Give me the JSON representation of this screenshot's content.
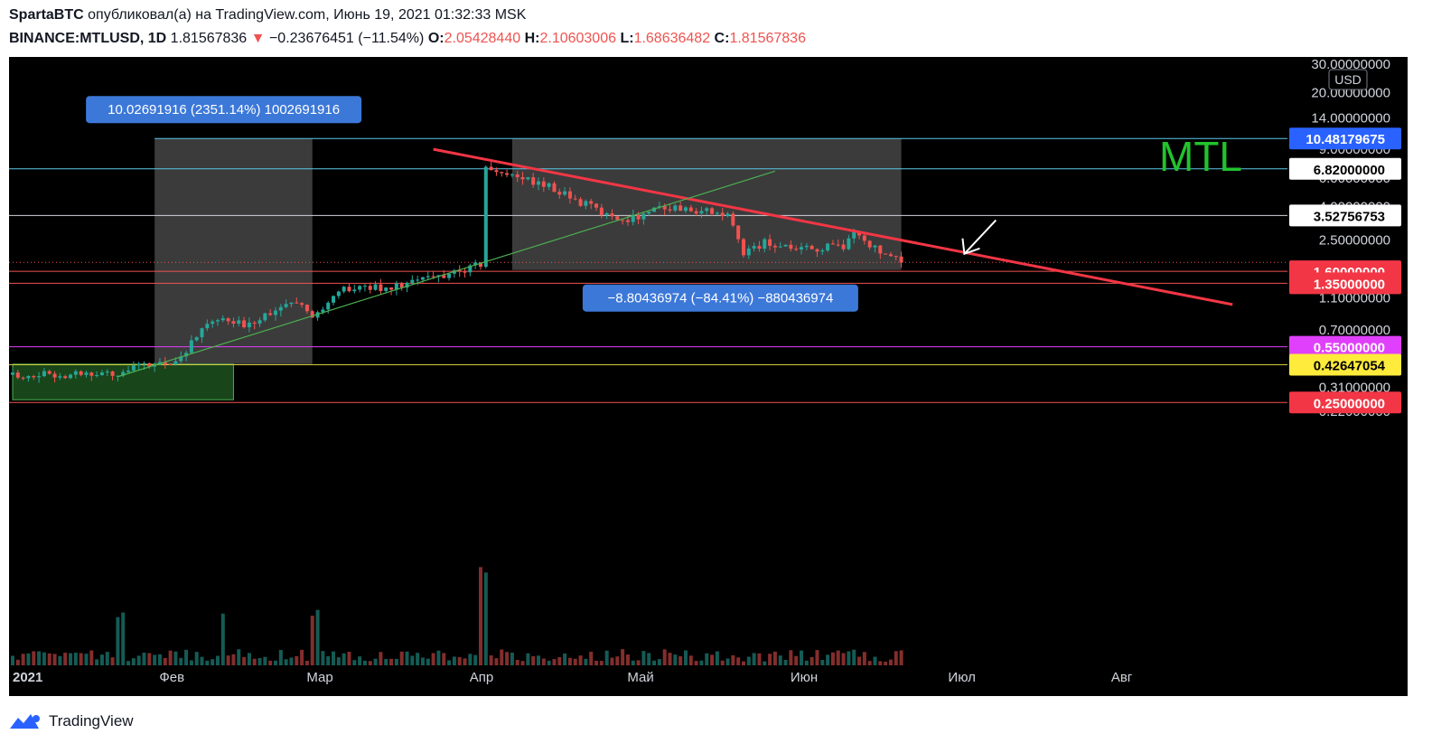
{
  "header": {
    "author": "SpartaBTC",
    "published_text": "опубликовал(а) на TradingView.com, Июнь 19, 2021 01:32:33 MSK",
    "symbol": "BINANCE:MTLUSD, 1D",
    "last": "1.81567836",
    "change_arrow": "▼",
    "change": "−0.23676451 (−11.54%)",
    "o_label": "O:",
    "o_value": "2.05428440",
    "h_label": "H:",
    "h_value": "2.10603006",
    "l_label": "L:",
    "l_value": "1.68636482",
    "c_label": "C:",
    "c_value": "1.81567836"
  },
  "footer": {
    "brand": "TradingView"
  },
  "colors": {
    "up": "#26a69a",
    "down": "#ef5350",
    "trend": "#f23645",
    "support": "#4caf50",
    "cyan": "#5bc8e8",
    "magenta": "#e040fb",
    "yellow": "#d4c83a",
    "mtl": "#22c32e"
  },
  "chart_data": {
    "type": "candlestick",
    "title": "MTL",
    "currency": "USD",
    "scale": "log",
    "ylim": [
      0.2,
      30
    ],
    "x_start": "2021-01-01",
    "x_end": "2021-08-31",
    "x_ticks": [
      {
        "date": "2021-01-01",
        "label": "2021"
      },
      {
        "date": "2021-02-01",
        "label": "Фев"
      },
      {
        "date": "2021-03-01",
        "label": "Мар"
      },
      {
        "date": "2021-04-01",
        "label": "Апр"
      },
      {
        "date": "2021-05-01",
        "label": "Май"
      },
      {
        "date": "2021-06-01",
        "label": "Июн"
      },
      {
        "date": "2021-07-01",
        "label": "Июл"
      },
      {
        "date": "2021-08-01",
        "label": "Авг"
      }
    ],
    "y_ticks": [
      {
        "value": 30,
        "label": "30.00000000"
      },
      {
        "value": 20,
        "label": "20.00000000"
      },
      {
        "value": 14,
        "label": "14.00000000"
      },
      {
        "value": 9,
        "label": "9.00000000"
      },
      {
        "value": 6,
        "label": "6.00000000"
      },
      {
        "value": 4,
        "label": "4.00000000"
      },
      {
        "value": 2.5,
        "label": "2.50000000"
      },
      {
        "value": 1.6,
        "label": "1.60000000"
      },
      {
        "value": 1.1,
        "label": "1.10000000"
      },
      {
        "value": 0.7,
        "label": "0.70000000"
      },
      {
        "value": 0.31,
        "label": "0.31000000"
      },
      {
        "value": 0.22,
        "label": "0.22000000"
      }
    ],
    "levels": [
      {
        "value": 10.48179675,
        "label": "10.48179675",
        "line": "cyan",
        "badge_bg": "#2962ff",
        "badge_fg": "#ffffff"
      },
      {
        "value": 6.82,
        "label": "6.82000000",
        "line": "cyan",
        "badge_bg": "#ffffff",
        "badge_fg": "#000000"
      },
      {
        "value": 3.52756753,
        "label": "3.52756753",
        "line": "white",
        "badge_bg": "#ffffff",
        "badge_fg": "#000000"
      },
      {
        "value": 1.6,
        "label": "1.60000000",
        "line": "red",
        "badge_bg": "#f23645",
        "badge_fg": "#ffffff"
      },
      {
        "value": 1.35,
        "label": "1.35000000",
        "line": "red",
        "badge_bg": "#f23645",
        "badge_fg": "#ffffff"
      },
      {
        "value": 0.55,
        "label": "0.55000000",
        "line": "magenta",
        "badge_bg": "#e040fb",
        "badge_fg": "#ffffff"
      },
      {
        "value": 0.42647054,
        "label": "0.42647054",
        "line": "yellow",
        "badge_bg": "#ffeb3b",
        "badge_fg": "#000000"
      },
      {
        "value": 0.25,
        "label": "0.25000000",
        "line": "red",
        "badge_bg": "#f23645",
        "badge_fg": "#ffffff"
      }
    ],
    "current_price": 1.81567836,
    "measures": [
      {
        "label": "10.02691916 (2351.14%) 1002691916",
        "from": "2021-01-28",
        "to": "2021-02-27",
        "high": 10.48,
        "low": 0.43
      },
      {
        "label": "−8.80436974 (−84.41%) −880436974",
        "from": "2021-04-06",
        "to": "2021-06-19",
        "high": 10.48,
        "low": 1.63
      }
    ],
    "trend_lines": [
      {
        "name": "resistance",
        "from": {
          "date": "2021-03-22",
          "value": 9.0
        },
        "to": {
          "date": "2021-08-21",
          "value": 1.0
        }
      },
      {
        "name": "support",
        "from": {
          "date": "2021-01-21",
          "value": 0.36
        },
        "to": {
          "date": "2021-05-26",
          "value": 6.6
        }
      }
    ],
    "arrow": {
      "from": {
        "date": "2021-07-07",
        "value": 3.3
      },
      "to": {
        "date": "2021-07-01",
        "value": 2.05
      }
    },
    "accumulation_zone": {
      "from": "2021-01-01",
      "to": "2021-02-12",
      "high": 0.43,
      "low": 0.26
    },
    "anchor_points": [
      {
        "date": "2021-01-01",
        "value": 0.37
      },
      {
        "date": "2021-01-20",
        "value": 0.38
      },
      {
        "date": "2021-02-01",
        "value": 0.45
      },
      {
        "date": "2021-02-08",
        "value": 0.8
      },
      {
        "date": "2021-02-14",
        "value": 0.75
      },
      {
        "date": "2021-02-20",
        "value": 0.95
      },
      {
        "date": "2021-02-24",
        "value": 0.98
      },
      {
        "date": "2021-02-28",
        "value": 0.85
      },
      {
        "date": "2021-03-05",
        "value": 1.25
      },
      {
        "date": "2021-03-15",
        "value": 1.3
      },
      {
        "date": "2021-03-25",
        "value": 1.55
      },
      {
        "date": "2021-03-31",
        "value": 1.75
      },
      {
        "date": "2021-04-01",
        "value": 6.8
      },
      {
        "date": "2021-04-06",
        "value": 6.3
      },
      {
        "date": "2021-04-15",
        "value": 5.0
      },
      {
        "date": "2021-04-22",
        "value": 3.8
      },
      {
        "date": "2021-04-27",
        "value": 3.3
      },
      {
        "date": "2021-05-05",
        "value": 4.0
      },
      {
        "date": "2021-05-12",
        "value": 3.8
      },
      {
        "date": "2021-05-17",
        "value": 3.5
      },
      {
        "date": "2021-05-20",
        "value": 2.1
      },
      {
        "date": "2021-05-24",
        "value": 2.4
      },
      {
        "date": "2021-05-31",
        "value": 2.15
      },
      {
        "date": "2021-06-08",
        "value": 2.3
      },
      {
        "date": "2021-06-10",
        "value": 2.8
      },
      {
        "date": "2021-06-14",
        "value": 2.2
      },
      {
        "date": "2021-06-18",
        "value": 2.05
      },
      {
        "date": "2021-06-19",
        "value": 1.82
      }
    ]
  }
}
